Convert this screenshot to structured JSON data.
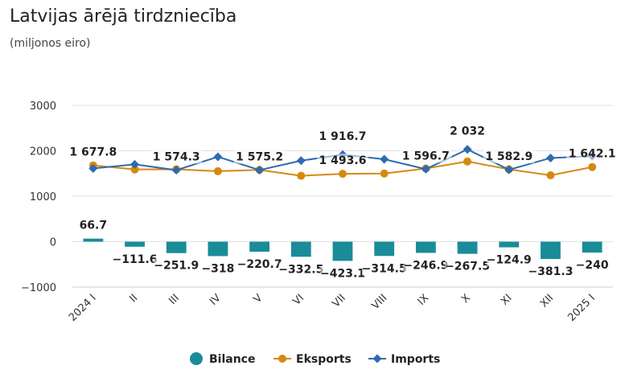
{
  "chart_data": {
    "type": "bar",
    "title": "Latvijas ārējā tirdzniecība",
    "subtitle": "(miljonos eiro)",
    "categories": [
      "2024 I",
      "II",
      "III",
      "IV",
      "V",
      "VI",
      "VII",
      "VIII",
      "IX",
      "X",
      "XI",
      "XII",
      "2025 I"
    ],
    "ylim": [
      -1000,
      3000
    ],
    "yticks": [
      -1000,
      0,
      1000,
      2000,
      3000
    ],
    "ytick_labels": [
      "−1000",
      "0",
      "1000",
      "2000",
      "3000"
    ],
    "grid": true,
    "legend_position": "bottom",
    "series": [
      {
        "name": "Bilance",
        "type": "bar",
        "color": "#1a8c99",
        "values": [
          66.7,
          -111.6,
          -251.9,
          -318,
          -220.7,
          -332.5,
          -423.1,
          -314.5,
          -246.9,
          -267.5,
          -124.9,
          -381.3,
          -240
        ],
        "labels": [
          "66.7",
          "−111.6",
          "−251.9",
          "−318",
          "−220.7",
          "−332.5",
          "−423.1",
          "−314.5",
          "−246.9",
          "−267.5",
          "−124.9",
          "−381.3",
          "−240"
        ]
      },
      {
        "name": "Eksports",
        "type": "line",
        "color": "#d68910",
        "values": [
          1677.8,
          1590,
          1592,
          1550,
          1580,
          1450,
          1493.6,
          1500,
          1610,
          1764.5,
          1592,
          1460,
          1642.1
        ],
        "labels": [
          "1 677.8",
          "",
          "",
          "",
          "",
          "",
          "1 493.6",
          "",
          "",
          "",
          "",
          "",
          "1 642.1"
        ]
      },
      {
        "name": "Imports",
        "type": "line",
        "color": "#2e6bb0",
        "values": [
          1611.1,
          1701.6,
          1574.3,
          1868,
          1575.2,
          1782.5,
          1916.7,
          1814.5,
          1596.7,
          2032,
          1582.9,
          1841.3,
          1882.1
        ],
        "labels": [
          "",
          "",
          "1 574.3",
          "",
          "1 575.2",
          "",
          "1 916.7",
          "",
          "1 596.7",
          "2 032",
          "1 582.9",
          "",
          ""
        ]
      }
    ]
  }
}
